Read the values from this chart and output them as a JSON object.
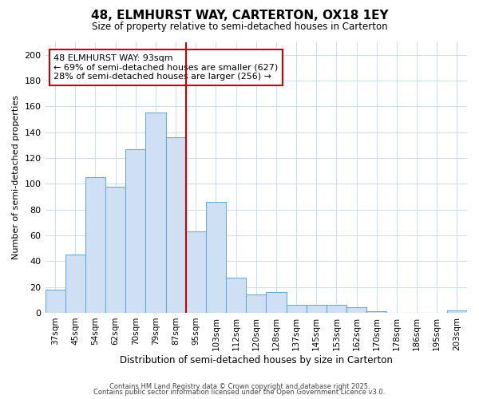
{
  "title": "48, ELMHURST WAY, CARTERTON, OX18 1EY",
  "subtitle": "Size of property relative to semi-detached houses in Carterton",
  "xlabel": "Distribution of semi-detached houses by size in Carterton",
  "ylabel": "Number of semi-detached properties",
  "categories": [
    "37sqm",
    "45sqm",
    "54sqm",
    "62sqm",
    "70sqm",
    "79sqm",
    "87sqm",
    "95sqm",
    "103sqm",
    "112sqm",
    "120sqm",
    "128sqm",
    "137sqm",
    "145sqm",
    "153sqm",
    "162sqm",
    "170sqm",
    "178sqm",
    "186sqm",
    "195sqm",
    "203sqm"
  ],
  "values": [
    18,
    45,
    105,
    98,
    127,
    155,
    136,
    63,
    86,
    27,
    14,
    16,
    6,
    6,
    6,
    4,
    1,
    0,
    0,
    0,
    2
  ],
  "bar_color": "#cfe0f5",
  "bar_edge_color": "#6aaad4",
  "background_color": "#ffffff",
  "grid_color": "#d0dff0",
  "vline_x_index": 7,
  "vline_color": "#cc0000",
  "annotation_title": "48 ELMHURST WAY: 93sqm",
  "annotation_line1": "← 69% of semi-detached houses are smaller (627)",
  "annotation_line2": "28% of semi-detached houses are larger (256) →",
  "annotation_box_color": "#ffffff",
  "annotation_box_edge": "#cc0000",
  "ylim": [
    0,
    210
  ],
  "yticks": [
    0,
    20,
    40,
    60,
    80,
    100,
    120,
    140,
    160,
    180,
    200
  ],
  "footer_line1": "Contains HM Land Registry data © Crown copyright and database right 2025.",
  "footer_line2": "Contains public sector information licensed under the Open Government Licence v3.0."
}
